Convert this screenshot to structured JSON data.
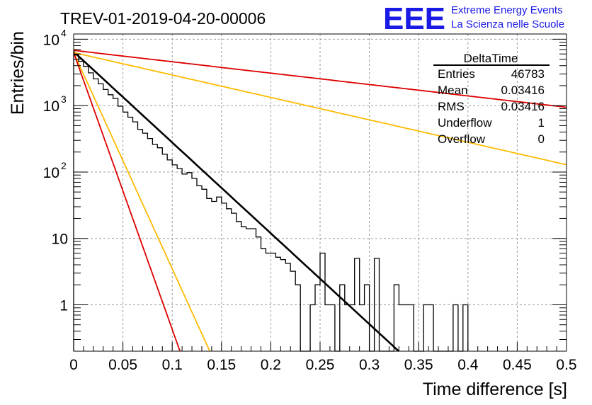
{
  "chart_data": {
    "type": "histogram-line",
    "title": "TREV-01-2019-04-20-00006",
    "xlabel": "Time difference [s]",
    "ylabel": "Entries/bin",
    "xlim": [
      0,
      0.5
    ],
    "ylim": [
      0.2,
      12000
    ],
    "yscale": "log",
    "grid": true,
    "x_ticks": [
      "0",
      "0.05",
      "0.1",
      "0.15",
      "0.2",
      "0.25",
      "0.3",
      "0.35",
      "0.4",
      "0.45",
      "0.5"
    ],
    "y_ticks": [
      {
        "value": 1,
        "label": "1"
      },
      {
        "value": 10,
        "label": "10"
      },
      {
        "value": 100,
        "label": "10",
        "exp": "2"
      },
      {
        "value": 1000,
        "label": "10",
        "exp": "3"
      },
      {
        "value": 10000,
        "label": "10",
        "exp": "4"
      }
    ],
    "histogram": {
      "color": "#000000",
      "bin_width": 0.005,
      "x_start": 0,
      "values": [
        5800,
        4650,
        3900,
        3120,
        2530,
        2130,
        1750,
        1460,
        1280,
        980,
        800,
        670,
        570,
        440,
        385,
        320,
        260,
        232,
        185,
        152,
        128,
        113,
        93,
        98,
        80,
        62,
        55,
        40,
        36,
        42,
        34,
        28,
        24,
        18,
        15,
        14,
        14,
        10.5,
        7,
        6,
        6,
        5.2,
        4.8,
        4.2,
        3.2,
        2,
        0.2,
        0.2,
        1,
        2,
        6,
        1,
        1,
        0.2,
        2,
        1,
        1,
        5,
        1,
        2,
        0.2,
        5,
        0.2,
        0.2,
        0.2,
        2,
        1,
        1,
        1,
        0.2,
        0.2,
        1,
        1,
        0.2,
        0.2,
        0.2,
        0.2,
        1,
        0.2,
        1
      ]
    },
    "fits": [
      {
        "color": "#000000",
        "width": 2.6,
        "y0": 6500,
        "slope_per_s": -31.5,
        "x_range": [
          0,
          0.36
        ]
      },
      {
        "color": "#dd0000",
        "width": 1.8,
        "y0": 6800,
        "slope_per_s": -3.95,
        "x_range": [
          0,
          0.5
        ]
      },
      {
        "color": "#ffbb00",
        "width": 1.8,
        "y0": 6300,
        "slope_per_s": -7.78,
        "x_range": [
          0,
          0.5
        ]
      },
      {
        "color": "#ffbb00",
        "width": 1.8,
        "y0": 6300,
        "slope_per_s": -75.0,
        "x_range": [
          0,
          0.2
        ]
      },
      {
        "color": "#dd0000",
        "width": 1.8,
        "y0": 6300,
        "slope_per_s": -96.0,
        "x_range": [
          0,
          0.15
        ]
      }
    ],
    "stats": {
      "title": "DeltaTime",
      "rows": [
        {
          "label": "Entries",
          "value": "46783"
        },
        {
          "label": "Mean",
          "value": "0.03416"
        },
        {
          "label": "RMS",
          "value": "0.03416"
        },
        {
          "label": "Underflow",
          "value": "1"
        },
        {
          "label": "Overflow",
          "value": "0"
        }
      ]
    },
    "logo": {
      "text": "EEE",
      "line1": "Extreme Energy Events",
      "line2": "La Scienza nelle Scuole",
      "color": "#1a1ae6"
    }
  }
}
